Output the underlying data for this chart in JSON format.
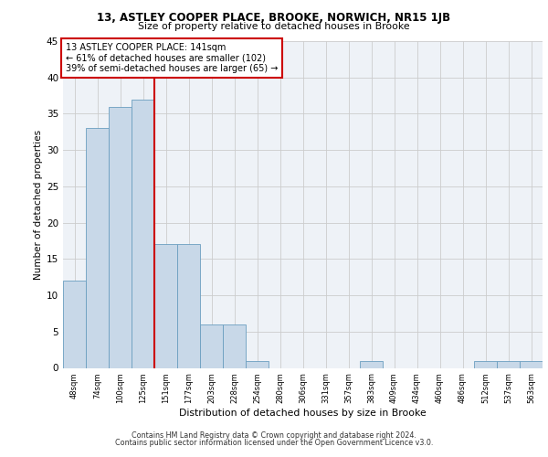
{
  "title_line1": "13, ASTLEY COOPER PLACE, BROOKE, NORWICH, NR15 1JB",
  "title_line2": "Size of property relative to detached houses in Brooke",
  "xlabel": "Distribution of detached houses by size in Brooke",
  "ylabel": "Number of detached properties",
  "bin_labels": [
    "48sqm",
    "74sqm",
    "100sqm",
    "125sqm",
    "151sqm",
    "177sqm",
    "203sqm",
    "228sqm",
    "254sqm",
    "280sqm",
    "306sqm",
    "331sqm",
    "357sqm",
    "383sqm",
    "409sqm",
    "434sqm",
    "460sqm",
    "486sqm",
    "512sqm",
    "537sqm",
    "563sqm"
  ],
  "bar_values": [
    12,
    33,
    36,
    37,
    17,
    17,
    6,
    6,
    1,
    0,
    0,
    0,
    0,
    1,
    0,
    0,
    0,
    0,
    1,
    1,
    1
  ],
  "bar_color": "#c8d8e8",
  "bar_edgecolor": "#6a9ec0",
  "ylim": [
    0,
    45
  ],
  "yticks": [
    0,
    5,
    10,
    15,
    20,
    25,
    30,
    35,
    40,
    45
  ],
  "annotation_text": "13 ASTLEY COOPER PLACE: 141sqm\n← 61% of detached houses are smaller (102)\n39% of semi-detached houses are larger (65) →",
  "annotation_box_color": "#ffffff",
  "annotation_box_edgecolor": "#cc0000",
  "vline_color": "#cc0000",
  "vline_x": 3.5,
  "grid_color": "#cccccc",
  "bg_color": "#eef2f7",
  "footer_line1": "Contains HM Land Registry data © Crown copyright and database right 2024.",
  "footer_line2": "Contains public sector information licensed under the Open Government Licence v3.0."
}
